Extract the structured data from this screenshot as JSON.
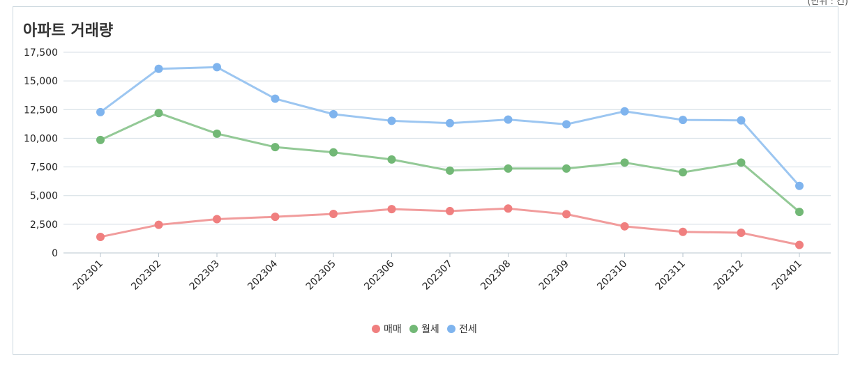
{
  "unit_note": "(단위 : 건)",
  "chart_data": {
    "type": "line",
    "title": "아파트 거래량",
    "xlabel": "",
    "ylabel": "",
    "categories": [
      "202301",
      "202302",
      "202303",
      "202304",
      "202305",
      "202306",
      "202307",
      "202308",
      "202309",
      "202310",
      "202311",
      "202312",
      "202401"
    ],
    "ylim": [
      0,
      17500
    ],
    "yticks": [
      0,
      2500,
      5000,
      7500,
      10000,
      12500,
      15000,
      17500
    ],
    "ytick_labels": [
      "0",
      "2,500",
      "5,000",
      "7,500",
      "10,000",
      "12,500",
      "15,000",
      "17,500"
    ],
    "grid": true,
    "legend_position": "bottom-center",
    "series": [
      {
        "name": "매매",
        "color": "#f07f7f",
        "line_color": "#f19c9c",
        "values": [
          1400,
          2450,
          2950,
          3150,
          3400,
          3820,
          3650,
          3870,
          3380,
          2320,
          1840,
          1760,
          700
        ]
      },
      {
        "name": "월세",
        "color": "#72b876",
        "line_color": "#93c996",
        "values": [
          9850,
          12200,
          10400,
          9230,
          8770,
          8150,
          7180,
          7360,
          7360,
          7880,
          7030,
          7880,
          3580
        ]
      },
      {
        "name": "전세",
        "color": "#7fb4ee",
        "line_color": "#9cc6f1",
        "values": [
          12280,
          16060,
          16200,
          13450,
          12100,
          11520,
          11320,
          11630,
          11220,
          12350,
          11600,
          11560,
          5850
        ]
      }
    ]
  }
}
